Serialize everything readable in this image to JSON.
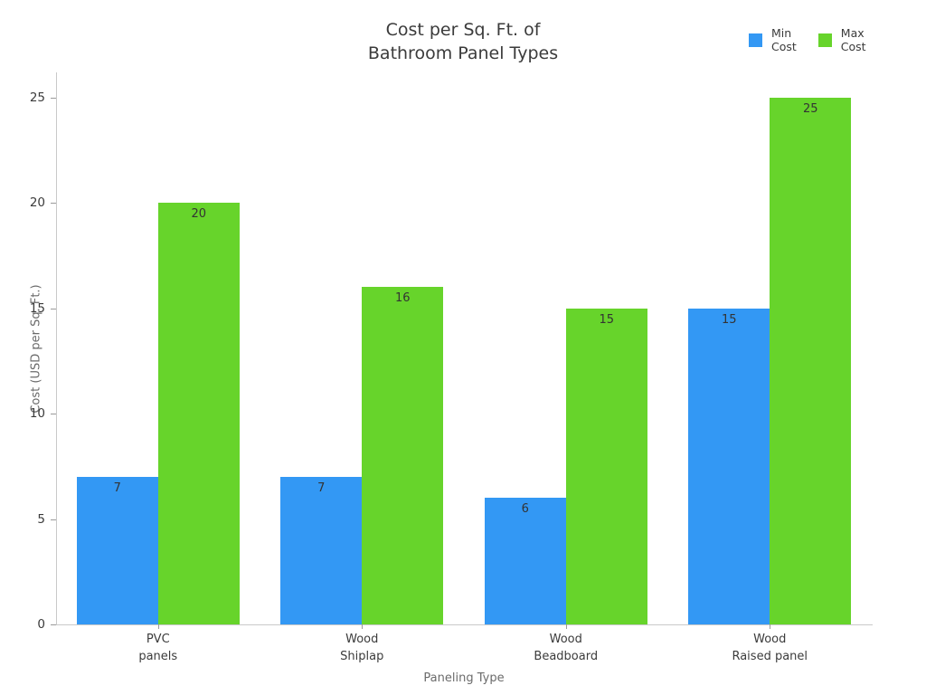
{
  "chart_data": {
    "type": "bar",
    "title": "Cost per Sq. Ft. of Bathroom Panel Types",
    "title_lines": [
      "Cost per Sq. Ft. of",
      "Bathroom Panel Types"
    ],
    "categories": [
      "PVC panels",
      "Wood Shiplap",
      "Wood Beadboard",
      "Wood Raised panel"
    ],
    "category_lines": [
      [
        "PVC",
        "panels"
      ],
      [
        "Wood",
        "Shiplap"
      ],
      [
        "Wood",
        "Beadboard"
      ],
      [
        "Wood",
        "Raised panel"
      ]
    ],
    "series": [
      {
        "name": "Min Cost",
        "name_lines": [
          "Min",
          "Cost"
        ],
        "color": "#3398f4",
        "values": [
          7,
          7,
          6,
          15
        ]
      },
      {
        "name": "Max Cost",
        "name_lines": [
          "Max",
          "Cost"
        ],
        "color": "#67d42b",
        "values": [
          20,
          16,
          15,
          25
        ]
      }
    ],
    "xlabel": "Paneling Type",
    "ylabel": "Cost (USD per Sq. Ft.)",
    "yticks": [
      0,
      5,
      10,
      15,
      20,
      25
    ],
    "ylim": [
      0,
      26.2
    ],
    "grid": false,
    "legend_position": "top-right",
    "bar_value_labels": true,
    "colors": {
      "axis_line": "#c9c9c9",
      "tick_mark": "#9a9a9a",
      "tick_text": "#3b3b3b",
      "axis_title_text": "#6b6b6b",
      "title_text": "#3b3b3b",
      "background": "#ffffff"
    }
  }
}
